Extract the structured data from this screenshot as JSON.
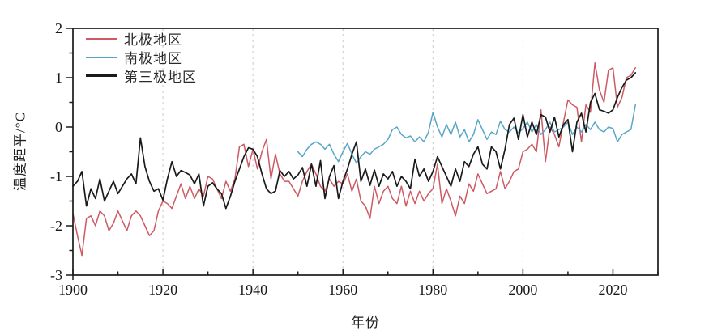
{
  "chart_data": {
    "type": "line",
    "title": "",
    "xlabel": "年份",
    "ylabel": "温度距平/°C",
    "xlim": [
      1900,
      2030
    ],
    "ylim": [
      -3,
      2
    ],
    "x_major_ticks": [
      1900,
      1920,
      1940,
      1960,
      1980,
      2000,
      2020
    ],
    "x_minor_step": 10,
    "y_major_ticks": [
      -3,
      -2,
      -1,
      0,
      1,
      2
    ],
    "y_minor_step": 0.5,
    "grid": "vertical dashed gridlines at 20-year major ticks",
    "grid_color": "#c9c9c9",
    "axis_color": "#1a1a1a",
    "legend_position": "top-left inside plot, no border",
    "series": [
      {
        "id": "arctic",
        "name": "北极地区",
        "color": "#cd5a64",
        "line_width": 1.5,
        "x_start": 1900,
        "x_step": 1,
        "values": [
          -1.75,
          -2.2,
          -2.6,
          -1.85,
          -1.8,
          -2.0,
          -1.7,
          -1.8,
          -2.1,
          -1.95,
          -1.7,
          -1.9,
          -2.1,
          -1.8,
          -1.7,
          -1.8,
          -2.0,
          -2.2,
          -2.1,
          -1.7,
          -1.5,
          -1.55,
          -1.65,
          -1.4,
          -1.15,
          -1.45,
          -1.2,
          -1.45,
          -1.25,
          -1.4,
          -1.0,
          -1.05,
          -1.25,
          -1.45,
          -1.1,
          -1.3,
          -1.05,
          -0.4,
          -0.35,
          -0.8,
          -0.45,
          -0.85,
          -0.5,
          -0.25,
          -1.05,
          -0.55,
          -0.95,
          -1.1,
          -1.1,
          -1.25,
          -1.4,
          -1.1,
          -0.9,
          -0.75,
          -0.95,
          -1.2,
          -1.3,
          -1.05,
          -1.2,
          -1.1,
          -1.15,
          -0.95,
          -1.3,
          -1.05,
          -1.5,
          -1.6,
          -1.85,
          -1.2,
          -1.55,
          -1.3,
          -1.2,
          -1.45,
          -1.55,
          -1.2,
          -1.6,
          -1.3,
          -1.55,
          -1.3,
          -1.5,
          -1.35,
          -1.25,
          -0.75,
          -1.55,
          -1.25,
          -1.5,
          -1.8,
          -1.4,
          -1.55,
          -1.15,
          -1.3,
          -0.95,
          -1.15,
          -1.35,
          -1.3,
          -1.25,
          -0.9,
          -1.25,
          -1.1,
          -0.9,
          -0.85,
          -0.5,
          -0.45,
          -0.35,
          -0.5,
          0.35,
          -0.7,
          0.0,
          -0.15,
          -0.4,
          0.1,
          0.55,
          0.45,
          0.4,
          -0.3,
          0.45,
          0.3,
          1.3,
          0.75,
          0.5,
          1.15,
          1.2,
          0.4,
          0.6,
          1.0,
          1.05,
          1.2
        ]
      },
      {
        "id": "antarctic",
        "name": "南极地区",
        "color": "#57a6c6",
        "line_width": 1.5,
        "x_start": 1950,
        "x_step": 1,
        "values": [
          -0.5,
          -0.6,
          -0.45,
          -0.35,
          -0.3,
          -0.35,
          -0.45,
          -0.35,
          -0.55,
          -0.7,
          -0.5,
          -0.33,
          -0.55,
          -0.73,
          -0.6,
          -0.5,
          -0.55,
          -0.45,
          -0.4,
          -0.35,
          -0.25,
          -0.05,
          0.0,
          -0.15,
          -0.22,
          -0.18,
          -0.3,
          -0.2,
          -0.3,
          -0.1,
          0.3,
          0.0,
          -0.2,
          0.05,
          -0.15,
          0.1,
          -0.2,
          -0.05,
          -0.3,
          -0.15,
          0.15,
          -0.05,
          -0.25,
          -0.1,
          -0.15,
          0.12,
          -0.05,
          -0.1,
          0.0,
          -0.12,
          -0.03,
          0.1,
          -0.1,
          0.05,
          -0.15,
          -0.05,
          0.1,
          -0.1,
          -0.05,
          0.0,
          0.1,
          -0.15,
          0.0,
          -0.1,
          0.05,
          -0.05,
          0.1,
          -0.05,
          -0.1,
          0.0,
          -0.03,
          -0.3,
          -0.15,
          -0.1,
          -0.05,
          0.45
        ]
      },
      {
        "id": "third-pole",
        "name": "第三极地区",
        "color": "#1a1a1a",
        "line_width": 1.7,
        "x_start": 1900,
        "x_step": 1,
        "values": [
          -1.2,
          -1.1,
          -0.9,
          -1.6,
          -1.25,
          -1.45,
          -1.05,
          -1.5,
          -1.3,
          -1.1,
          -1.35,
          -1.2,
          -1.05,
          -0.95,
          -1.15,
          -0.22,
          -0.8,
          -1.1,
          -1.3,
          -1.25,
          -1.48,
          -1.05,
          -0.7,
          -1.0,
          -0.88,
          -0.92,
          -0.97,
          -1.15,
          -0.95,
          -1.6,
          -1.2,
          -1.13,
          -1.25,
          -1.35,
          -1.65,
          -1.4,
          -1.1,
          -0.85,
          -0.6,
          -0.42,
          -0.45,
          -0.6,
          -0.95,
          -1.25,
          -1.35,
          -1.3,
          -0.88,
          -1.0,
          -0.9,
          -1.05,
          -0.97,
          -0.82,
          -1.2,
          -0.75,
          -1.2,
          -0.68,
          -1.45,
          -1.0,
          -0.78,
          -1.45,
          -1.1,
          -0.85,
          -0.55,
          -0.3,
          -1.1,
          -0.85,
          -1.18,
          -0.87,
          -1.2,
          -0.95,
          -1.05,
          -0.9,
          -1.2,
          -1.0,
          -1.1,
          -1.25,
          -0.65,
          -1.0,
          -0.85,
          -1.1,
          -0.9,
          -0.6,
          -0.8,
          -1.0,
          -1.2,
          -0.85,
          -1.1,
          -0.7,
          -0.8,
          -0.55,
          -0.4,
          -0.75,
          -0.85,
          -0.4,
          -0.5,
          -0.85,
          -0.45,
          0.05,
          0.18,
          -0.25,
          0.25,
          -0.2,
          0.1,
          -0.15,
          0.25,
          0.2,
          -0.1,
          0.2,
          -0.2,
          0.05,
          0.15,
          -0.5,
          0.1,
          0.28,
          -0.1,
          0.5,
          0.68,
          0.35,
          0.32,
          0.28,
          0.35,
          0.6,
          0.8,
          0.95,
          1.0,
          1.1
        ]
      }
    ]
  }
}
